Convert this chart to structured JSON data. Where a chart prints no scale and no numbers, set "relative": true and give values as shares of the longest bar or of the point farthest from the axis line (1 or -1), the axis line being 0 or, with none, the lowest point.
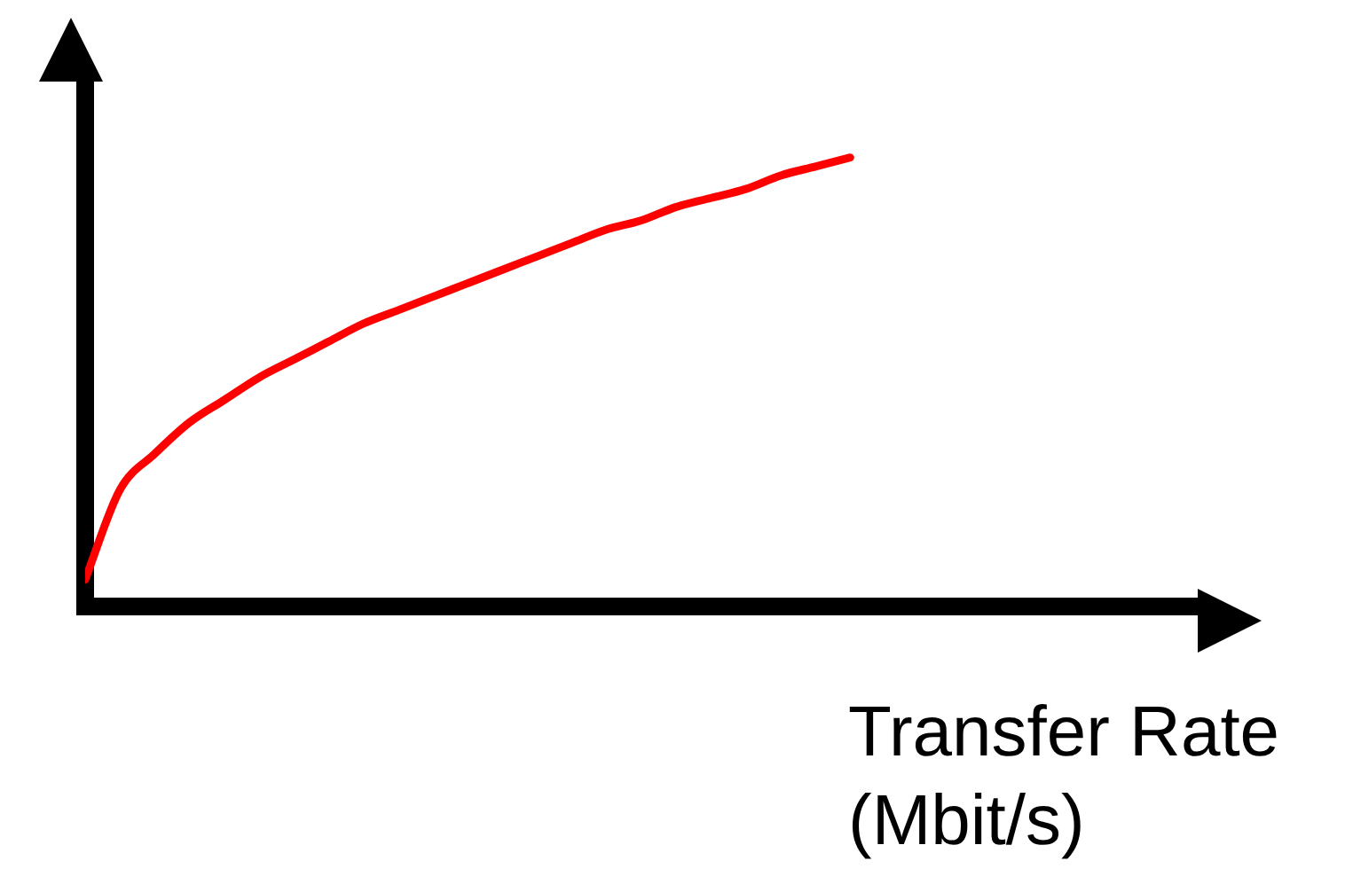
{
  "chart_data": {
    "type": "line",
    "relative": true,
    "xlabel": "Transfer Rate (Mbit/s)",
    "color": "#ff0000",
    "categories": [
      null,
      null,
      null,
      null,
      null,
      null,
      null,
      null,
      null,
      null,
      null,
      null,
      null,
      null,
      null,
      null,
      null,
      null,
      null,
      null,
      null,
      null,
      null
    ],
    "values": [
      0.06,
      0.26,
      0.34,
      0.41,
      0.46,
      0.51,
      0.55,
      0.59,
      0.63,
      0.66,
      0.69,
      0.72,
      0.75,
      0.78,
      0.81,
      0.84,
      0.86,
      0.89,
      0.91,
      0.93,
      0.96,
      0.98,
      1.0
    ]
  }
}
